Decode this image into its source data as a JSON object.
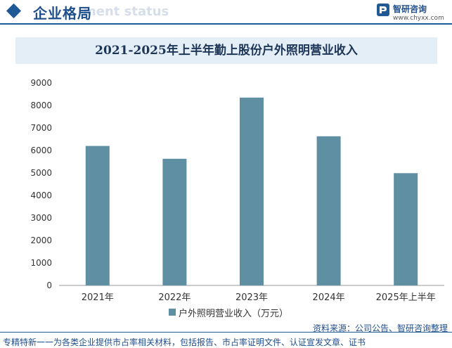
{
  "header": {
    "title": "企业格局",
    "watermark": "ment status",
    "brand_name": "智研咨询",
    "brand_url": "www.chyxx.com"
  },
  "colors": {
    "bar": "#5f8fa3",
    "accent": "#1f5a96",
    "title_bg": "#e4eef7"
  },
  "chart_data": {
    "type": "bar",
    "title": "2021-2025年上半年勤上股份户外照明营业收入",
    "categories": [
      "2021年",
      "2022年",
      "2023年",
      "2024年",
      "2025年上半年"
    ],
    "series": [
      {
        "name": "户外照明营业收入（万元）",
        "values": [
          6200,
          5630,
          8350,
          6630,
          4990
        ]
      }
    ],
    "ylim": [
      0,
      9000
    ],
    "yticks": [
      "0",
      "1000",
      "2000",
      "3000",
      "4000",
      "5000",
      "6000",
      "7000",
      "8000",
      "9000"
    ],
    "xlabel": "",
    "ylabel": "",
    "legend_position": "bottom",
    "grid": false
  },
  "source": "资料来源：公司公告、智研咨询整理",
  "footer": "专精特新一一为各类企业提供市占率相关材料，包括报告、市占率证明文件、认证宣发文章、证书"
}
